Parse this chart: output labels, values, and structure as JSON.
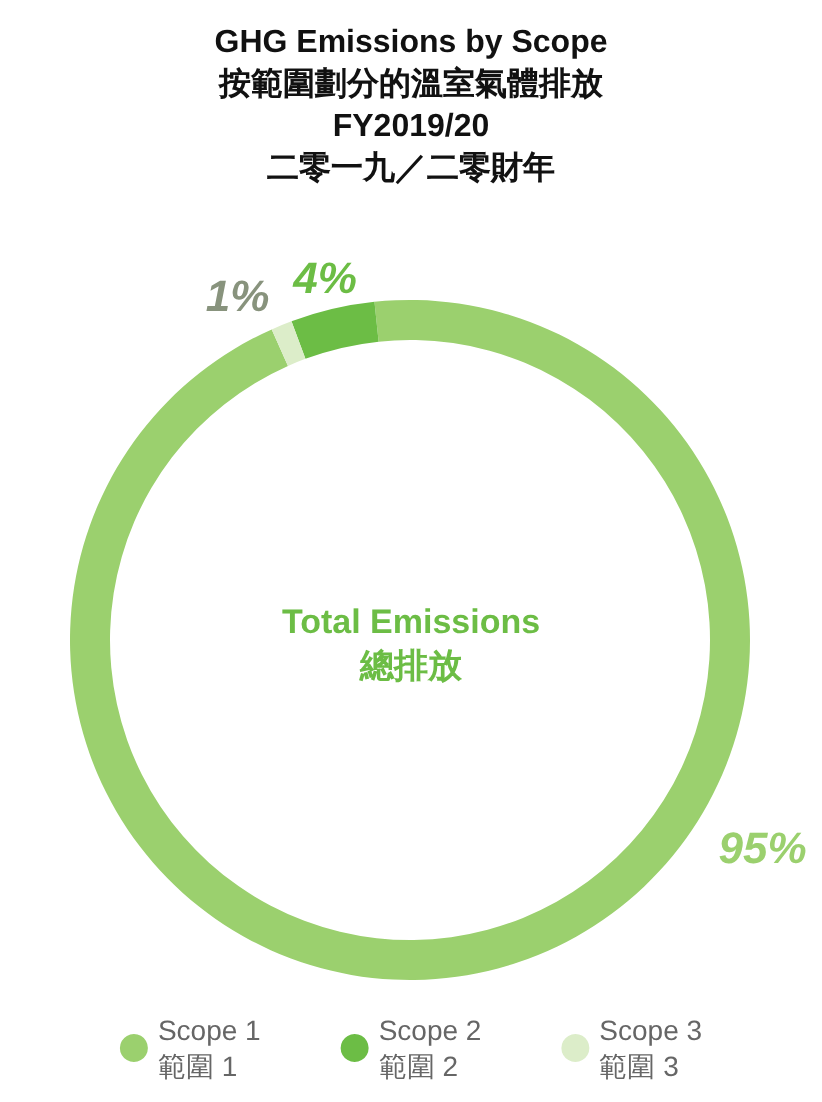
{
  "chart_data": {
    "type": "donut",
    "title": "GHG Emissions by Scope\n按範圍劃分的溫室氣體排放\nFY2019/20\n二零一九／二零財年",
    "categories": [
      "Scope 1\n範圍 1",
      "Scope 2\n範圍 2",
      "Scope 3\n範圍 3"
    ],
    "values": [
      95,
      4,
      1
    ],
    "colors": [
      "#9bd06e",
      "#6cbd45",
      "#dcedc9"
    ],
    "value_labels": [
      "95%",
      "4%",
      "1%"
    ],
    "legend": "bottom",
    "annotations": [
      "Total Emissions\n總排放"
    ]
  }
}
